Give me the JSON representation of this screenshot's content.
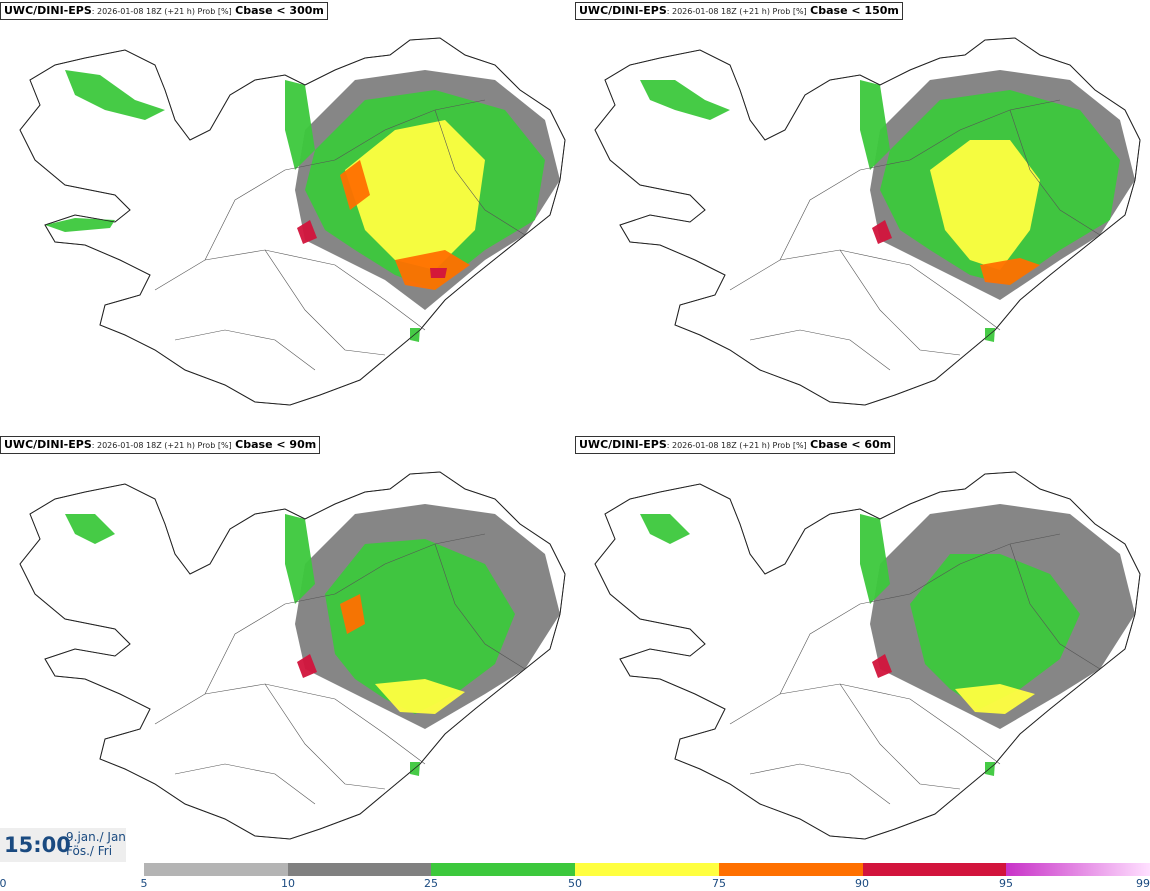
{
  "panels": [
    {
      "model": "UWC/DINI-EPS",
      "meta": ": 2026-01-08 18Z (+21 h) Prob [%]",
      "threshold": "Cbase < 300m"
    },
    {
      "model": "UWC/DINI-EPS",
      "meta": ": 2026-01-08 18Z (+21 h) Prob [%]",
      "threshold": "Cbase < 150m"
    },
    {
      "model": "UWC/DINI-EPS",
      "meta": ": 2026-01-08 18Z (+21 h) Prob [%]",
      "threshold": "Cbase < 90m"
    },
    {
      "model": "UWC/DINI-EPS",
      "meta": ": 2026-01-08 18Z (+21 h) Prob [%]",
      "threshold": "Cbase < 60m"
    }
  ],
  "time": {
    "clock": "15:00",
    "date_line1": "9.jan./ Jan",
    "date_line2": "Fös./ Fri"
  },
  "colorbar": {
    "ticks": [
      "0",
      "5",
      "10",
      "25",
      "50",
      "75",
      "90",
      "95",
      "99"
    ],
    "colors": [
      "#b4b4b4",
      "#808080",
      "#3cc83c",
      "#ffff40",
      "#ff7000",
      "#d2143c",
      "#c832c8"
    ]
  }
}
